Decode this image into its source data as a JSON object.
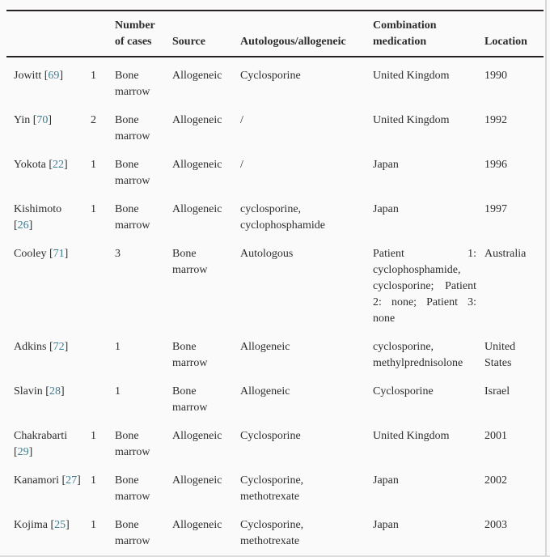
{
  "colors": {
    "page_background": "#fafafa",
    "text": "#2d2d2d",
    "rule": "#262223",
    "reference_link": "#3d7c91",
    "edge_divider": "#d7d7d7"
  },
  "table": {
    "columns": [
      "",
      "",
      "Number of cases",
      "Source",
      "Autologous/allogeneic",
      "Combination medication",
      "Location"
    ],
    "rows": [
      {
        "author": "Jowitt",
        "ref": "69",
        "cells": [
          "1",
          "Bone marrow",
          "Allogeneic",
          "Cyclosporine",
          "United Kingdom",
          "1990"
        ]
      },
      {
        "author": "Yin",
        "ref": "70",
        "cells": [
          "2",
          "Bone marrow",
          "Allogeneic",
          "/",
          "United Kingdom",
          "1992"
        ]
      },
      {
        "author": "Yokota",
        "ref": "22",
        "cells": [
          "1",
          "Bone marrow",
          "Allogeneic",
          "/",
          "Japan",
          "1996"
        ]
      },
      {
        "author": "Kishimoto",
        "ref": "26",
        "cells": [
          "1",
          "Bone marrow",
          "Allogeneic",
          "cyclosporine, cyclophosphamide",
          "Japan",
          "1997"
        ]
      },
      {
        "author": "Cooley",
        "ref": "71",
        "cells": [
          "",
          "3",
          "Bone marrow",
          "Autologous",
          "Patient 1: cyclophosphamide, cyclosporine; Patient 2: none; Patient 3: none",
          "Australia"
        ]
      },
      {
        "author": "Adkins",
        "ref": "72",
        "cells": [
          "",
          "1",
          "Bone marrow",
          "Allogeneic",
          "cyclosporine, methylprednisolone",
          "United States"
        ]
      },
      {
        "author": "Slavin",
        "ref": "28",
        "cells": [
          "",
          "1",
          "Bone marrow",
          "Allogeneic",
          "Cyclosporine",
          "Israel"
        ]
      },
      {
        "author": "Chakrabarti",
        "ref": "29",
        "cells": [
          "1",
          "Bone marrow",
          "Allogeneic",
          "Cyclosporine",
          "United Kingdom",
          "2001"
        ]
      },
      {
        "author": "Kanamori",
        "ref": "27",
        "cells": [
          "1",
          "Bone marrow",
          "Allogeneic",
          "Cyclosporine, methotrexate",
          "Japan",
          "2002"
        ]
      },
      {
        "author": "Kojima",
        "ref": "25",
        "cells": [
          "1",
          "Bone marrow",
          "Allogeneic",
          "Cyclosporine, methotrexate",
          "Japan",
          "2003"
        ]
      }
    ]
  }
}
